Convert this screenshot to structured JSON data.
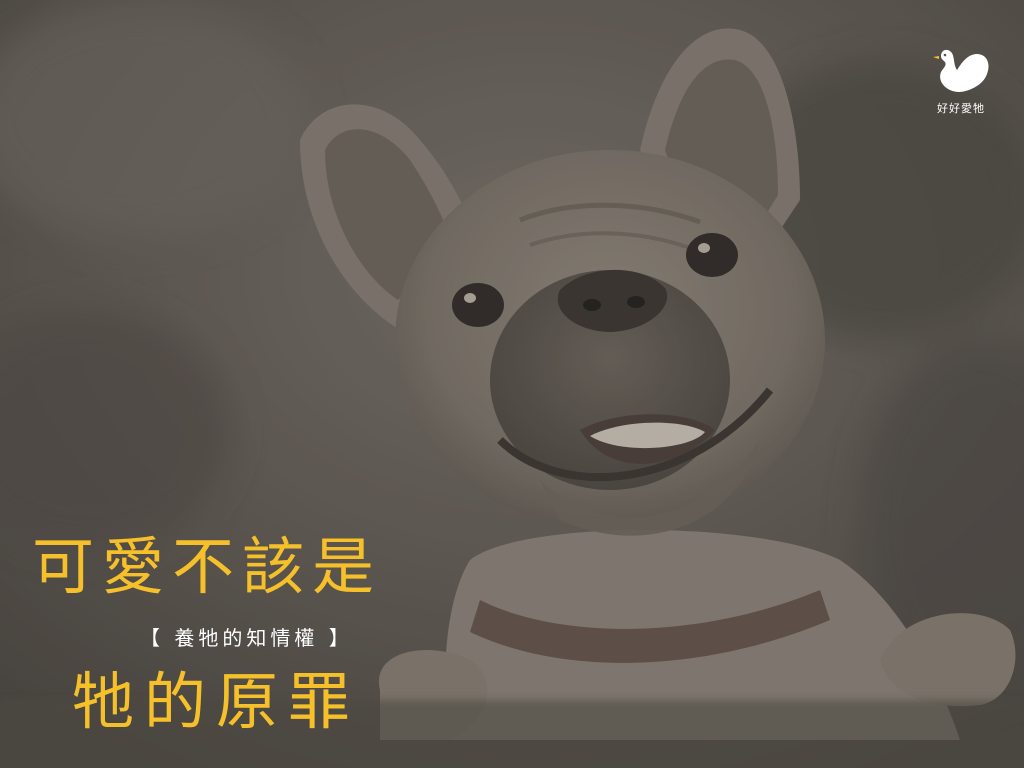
{
  "brand": {
    "name": "好好愛牠"
  },
  "poster": {
    "headline_top": "可愛不該是",
    "subtitle": "【 養牠的知情權 】",
    "headline_bottom": "牠的原罪"
  },
  "colors": {
    "background": "#5b5650",
    "headline": "#f6c02a",
    "subtitle": "#ffffff"
  },
  "icons": {
    "logo": "bird-heart-icon"
  }
}
